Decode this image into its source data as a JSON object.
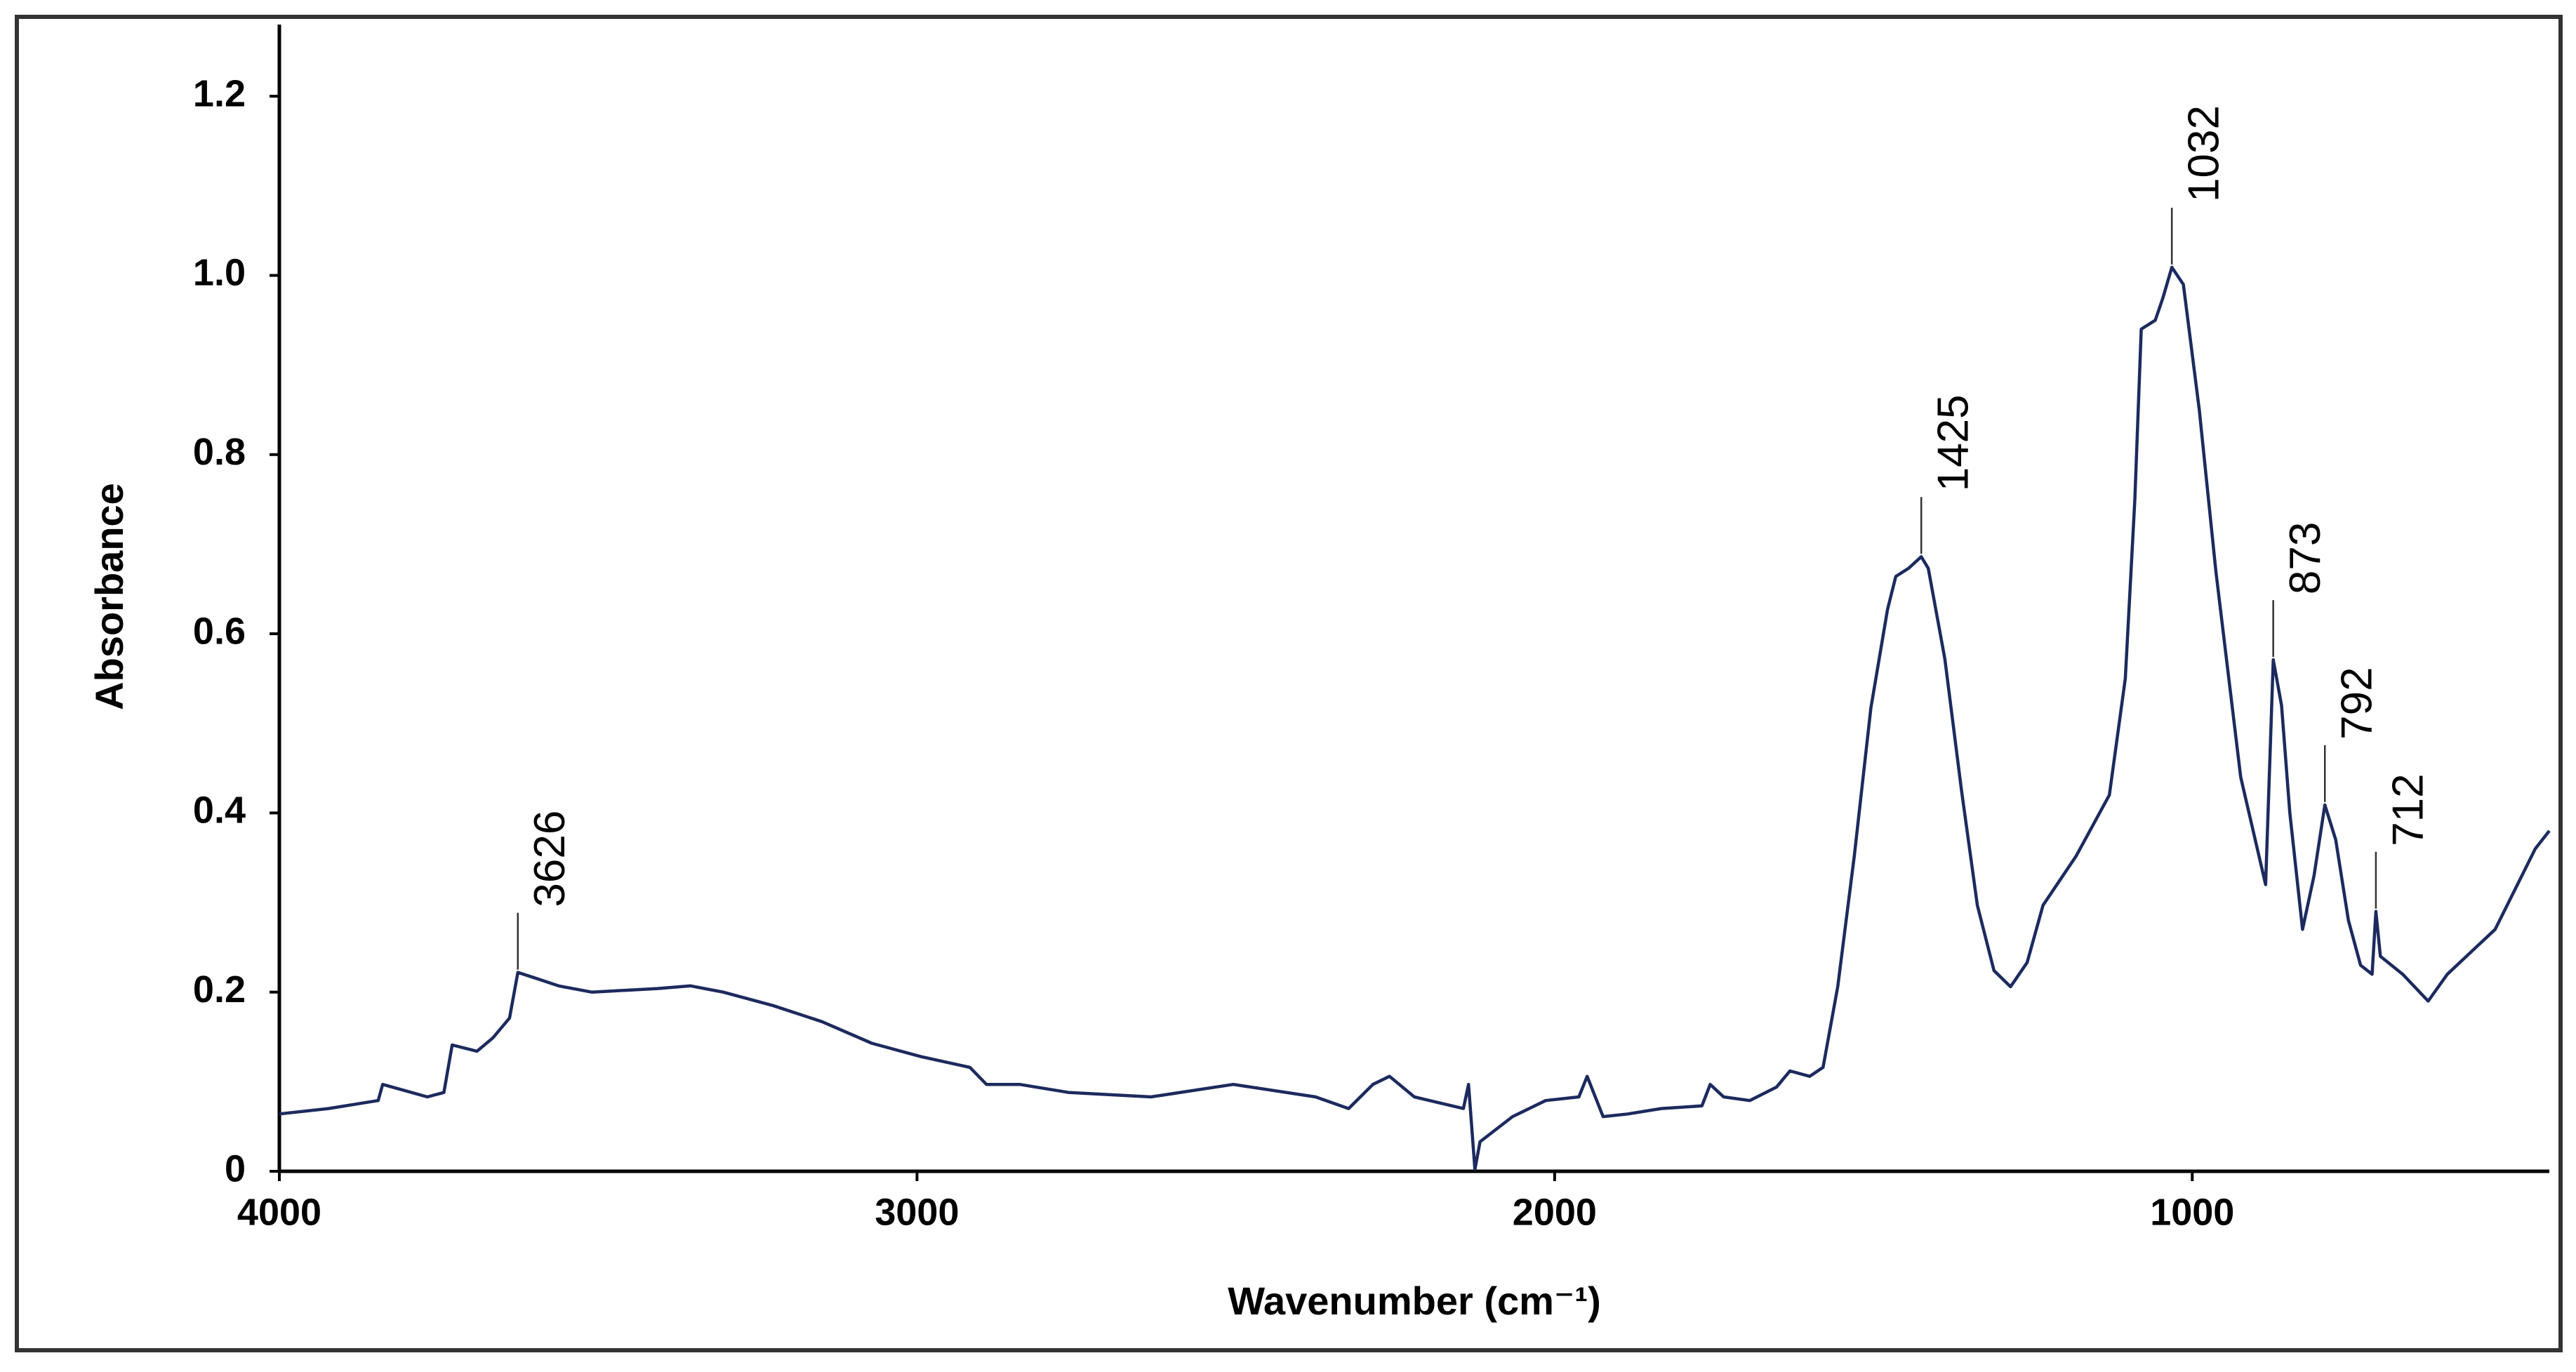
{
  "chart_data": {
    "type": "line",
    "x_label": "Wavenumber (cm⁻¹)",
    "y_label": "Absorbance",
    "x": [
      4000,
      3923,
      3845,
      3838,
      3768,
      3742,
      3729,
      3690,
      3665,
      3639,
      3626,
      3600,
      3562,
      3510,
      3407,
      3355,
      3304,
      3226,
      3149,
      3071,
      2994,
      2917,
      2891,
      2839,
      2762,
      2633,
      2504,
      2375,
      2323,
      2285,
      2259,
      2220,
      2143,
      2135,
      2125,
      2117,
      2066,
      2014,
      1962,
      1949,
      1924,
      1885,
      1833,
      1769,
      1756,
      1735,
      1694,
      1652,
      1631,
      1600,
      1579,
      1556,
      1530,
      1504,
      1478,
      1465,
      1445,
      1425,
      1414,
      1388,
      1362,
      1337,
      1311,
      1285,
      1259,
      1234,
      1182,
      1130,
      1105,
      1090,
      1080,
      1058,
      1046,
      1032,
      1014,
      989,
      963,
      924,
      885,
      873,
      860,
      847,
      827,
      809,
      792,
      775,
      755,
      736,
      718,
      712,
      705,
      670,
      630,
      600,
      555,
      525,
      462,
      440
    ],
    "values": [
      0.064,
      0.07,
      0.079,
      0.097,
      0.083,
      0.088,
      0.141,
      0.134,
      0.149,
      0.171,
      0.222,
      0.216,
      0.207,
      0.2,
      0.204,
      0.207,
      0.2,
      0.185,
      0.167,
      0.143,
      0.128,
      0.116,
      0.097,
      0.097,
      0.088,
      0.083,
      0.097,
      0.083,
      0.07,
      0.097,
      0.106,
      0.083,
      0.07,
      0.097,
      0.002,
      0.033,
      0.061,
      0.079,
      0.083,
      0.106,
      0.061,
      0.064,
      0.07,
      0.073,
      0.097,
      0.083,
      0.079,
      0.094,
      0.112,
      0.106,
      0.116,
      0.206,
      0.352,
      0.517,
      0.627,
      0.664,
      0.673,
      0.686,
      0.673,
      0.572,
      0.426,
      0.297,
      0.224,
      0.206,
      0.233,
      0.297,
      0.352,
      0.42,
      0.55,
      0.75,
      0.94,
      0.95,
      0.975,
      1.009,
      0.99,
      0.85,
      0.67,
      0.44,
      0.32,
      0.571,
      0.52,
      0.4,
      0.27,
      0.33,
      0.409,
      0.37,
      0.28,
      0.23,
      0.22,
      0.29,
      0.24,
      0.22,
      0.19,
      0.22,
      0.25,
      0.27,
      0.36,
      0.38
    ],
    "color": "#1c2a5e",
    "xlim": [
      4000,
      440
    ],
    "xticks": [
      4000,
      3000,
      2000,
      1000
    ],
    "ylim": [
      0,
      1.28
    ],
    "yticks": [
      0,
      0.2,
      0.4,
      0.6,
      0.8,
      {
        "value": 1,
        "label": "1.0"
      },
      1.2
    ],
    "peak_labels": [
      3626,
      1425,
      1032,
      873,
      792,
      712
    ]
  }
}
